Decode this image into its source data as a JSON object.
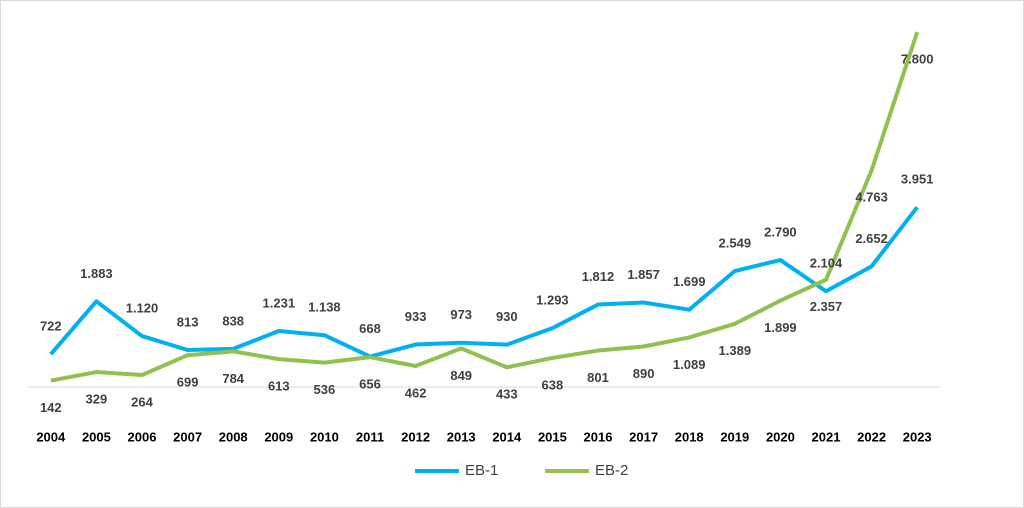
{
  "chart_data": {
    "type": "line",
    "categories": [
      "2004",
      "2005",
      "2006",
      "2007",
      "2008",
      "2009",
      "2010",
      "2011",
      "2012",
      "2013",
      "2014",
      "2015",
      "2016",
      "2017",
      "2018",
      "2019",
      "2020",
      "2021",
      "2022",
      "2023"
    ],
    "series": [
      {
        "name": "EB-1",
        "color": "#00b0f0",
        "values": [
          722,
          1883,
          1120,
          813,
          838,
          1231,
          1138,
          668,
          933,
          973,
          930,
          1293,
          1812,
          1857,
          1699,
          2549,
          2790,
          2104,
          2652,
          3951
        ],
        "value_labels": [
          "722",
          "1.883",
          "1.120",
          "813",
          "838",
          "1.231",
          "1.138",
          "668",
          "933",
          "973",
          "930",
          "1.293",
          "1.812",
          "1.857",
          "1.699",
          "2.549",
          "2.790",
          "2.104",
          "2.652",
          "3.951"
        ]
      },
      {
        "name": "EB-2",
        "color": "#92c050",
        "values": [
          142,
          329,
          264,
          699,
          784,
          613,
          536,
          656,
          462,
          849,
          433,
          638,
          801,
          890,
          1089,
          1389,
          1899,
          2357,
          4763,
          7800
        ],
        "value_labels": [
          "142",
          "329",
          "264",
          "699",
          "784",
          "613",
          "536",
          "656",
          "462",
          "849",
          "433",
          "638",
          "801",
          "890",
          "1.089",
          "1.389",
          "1.899",
          "2.357",
          "4.763",
          "7.800"
        ]
      }
    ],
    "ylim": [
      0,
      8000
    ]
  }
}
